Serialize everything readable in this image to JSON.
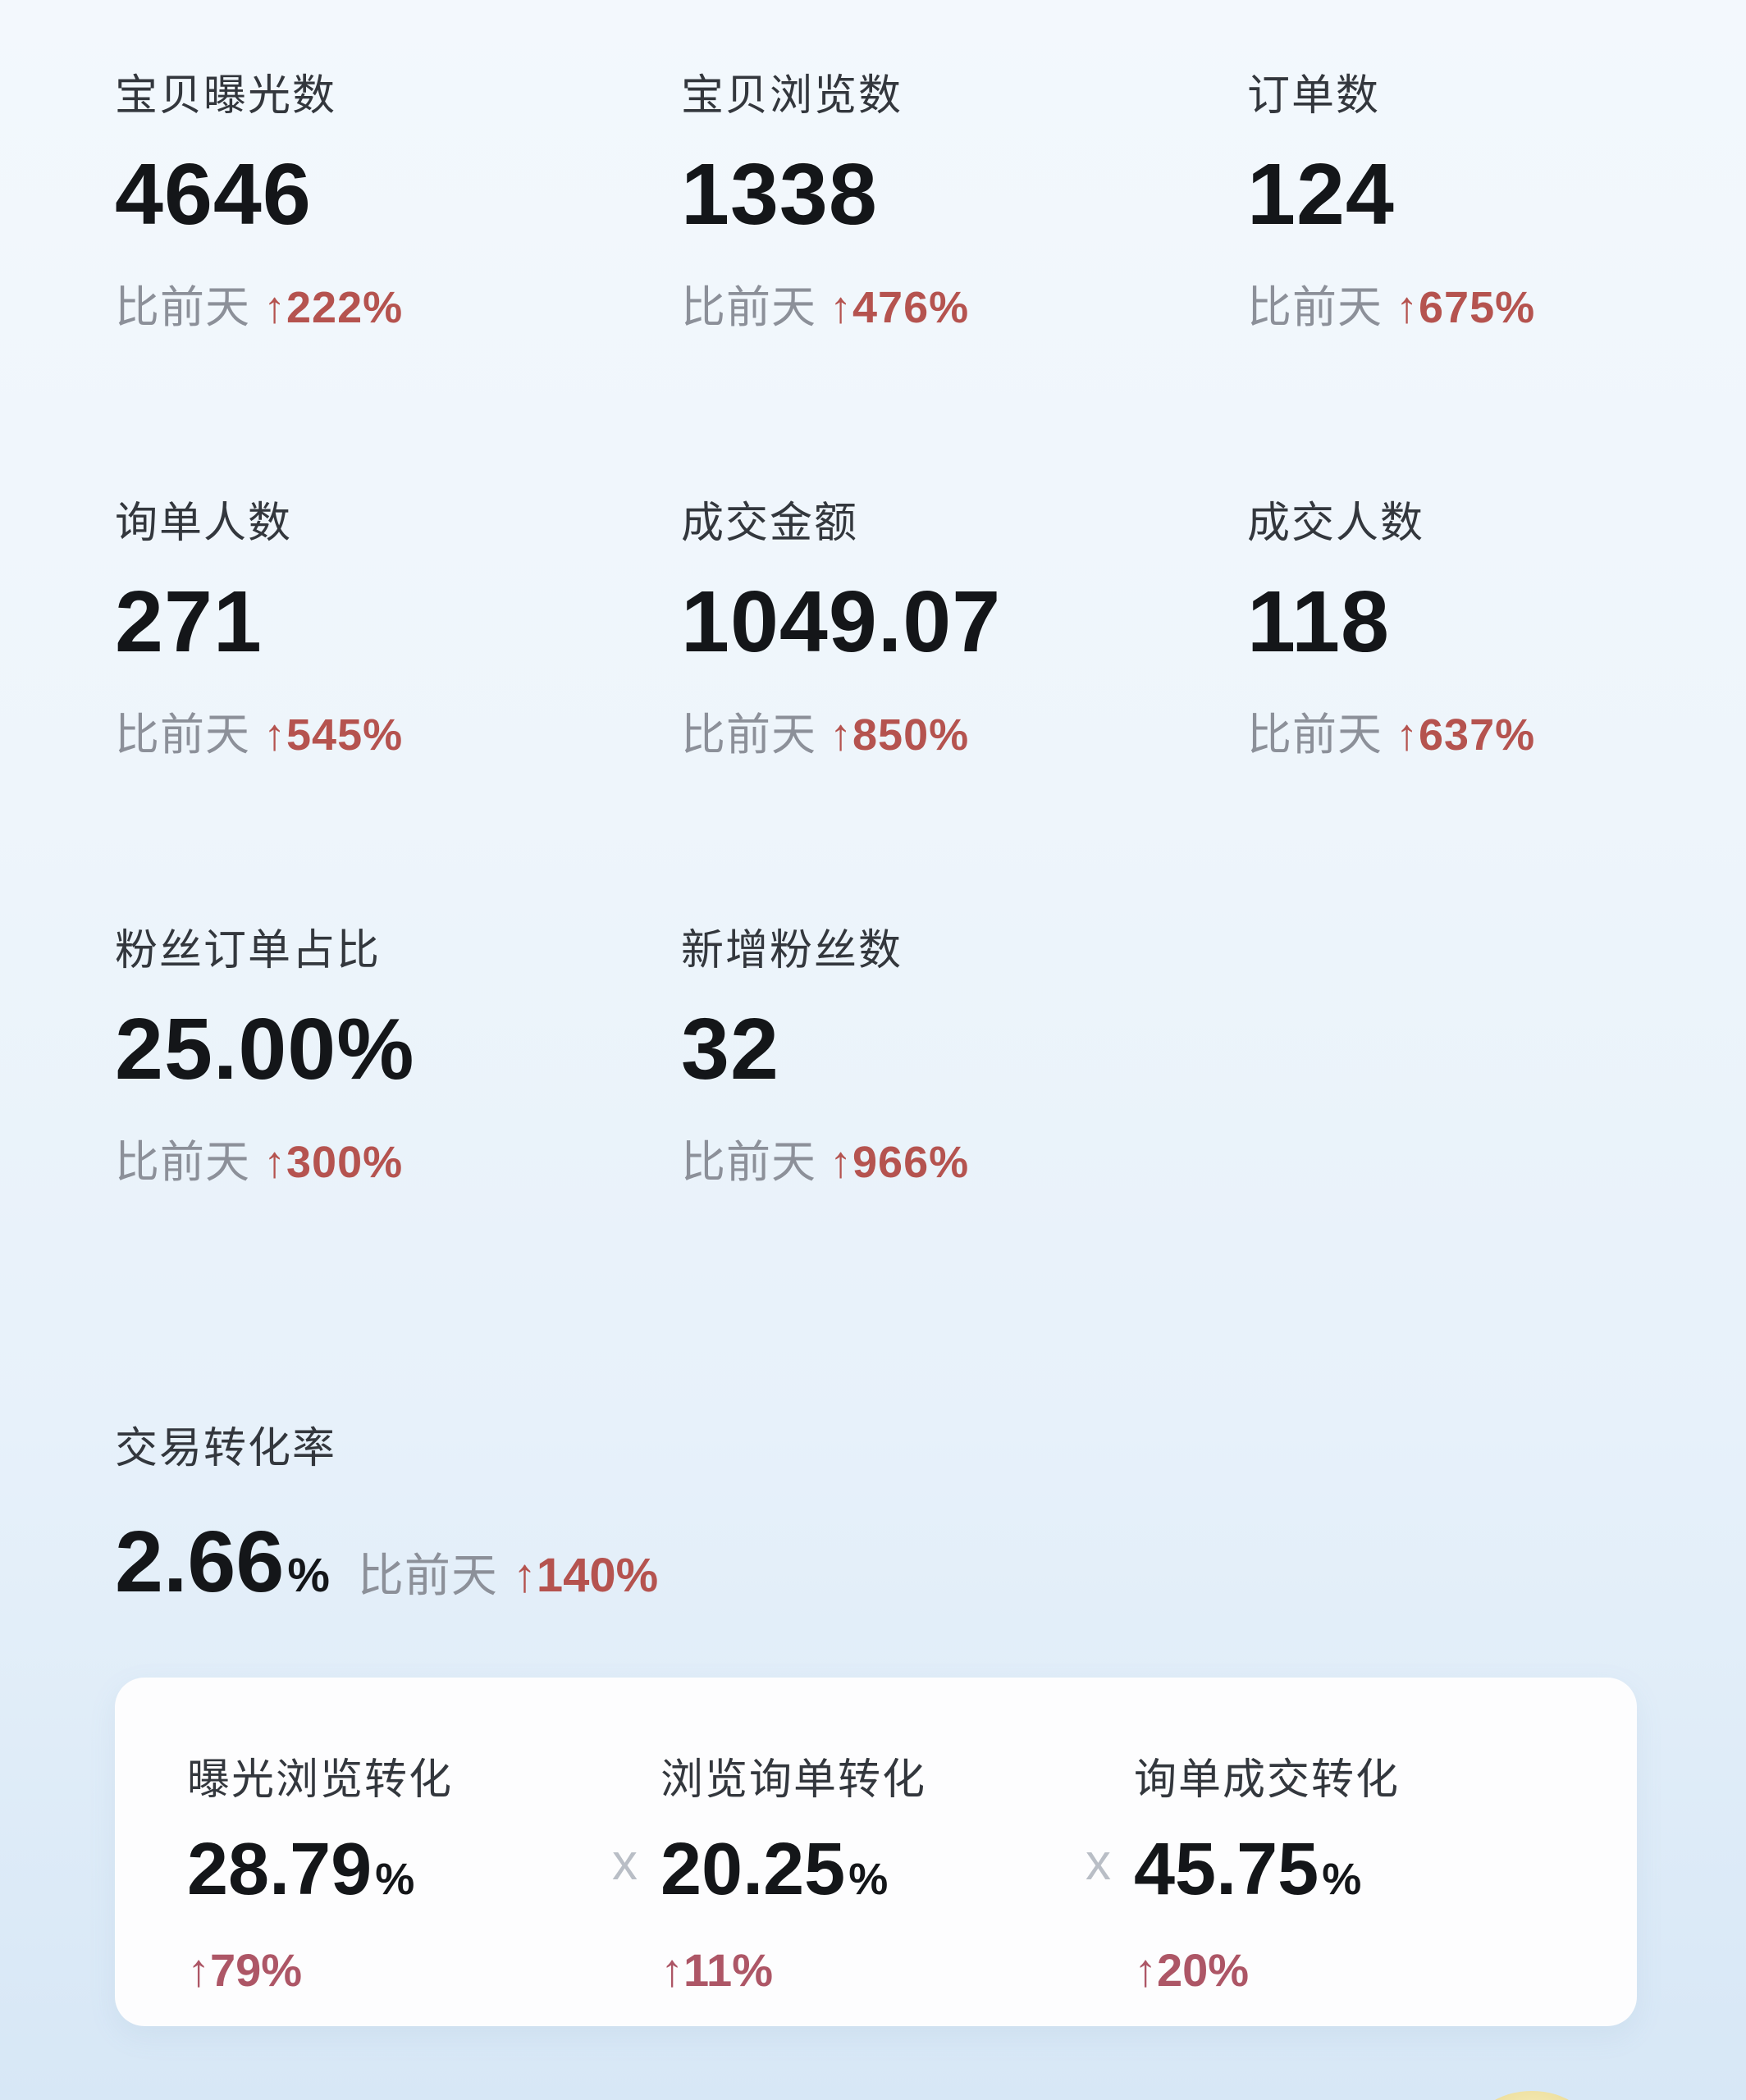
{
  "colors": {
    "background_top": "#f3f8fd",
    "background_bottom": "#d7e7f6",
    "card_background": "#fdfdfe",
    "label_text": "#33373d",
    "value_text": "#141619",
    "muted_text": "#8c9099",
    "up_red": "#b5534f",
    "card_delta_red": "#ad5666",
    "separator_gray": "#b9bec6",
    "sticker_yellow": "#efe1a2"
  },
  "compare": {
    "prefix": "比前天",
    "arrow": "↑"
  },
  "metrics": [
    {
      "label": "宝贝曝光数",
      "value": "4646",
      "delta": "222%"
    },
    {
      "label": "宝贝浏览数",
      "value": "1338",
      "delta": "476%"
    },
    {
      "label": "订单数",
      "value": "124",
      "delta": "675%"
    },
    {
      "label": "询单人数",
      "value": "271",
      "delta": "545%"
    },
    {
      "label": "成交金额",
      "value": "1049.07",
      "delta": "850%"
    },
    {
      "label": "成交人数",
      "value": "118",
      "delta": "637%"
    },
    {
      "label": "粉丝订单占比",
      "value": "25.00%",
      "delta": "300%"
    },
    {
      "label": "新增粉丝数",
      "value": "32",
      "delta": "966%"
    }
  ],
  "conversion": {
    "label": "交易转化率",
    "value": "2.66",
    "unit": "%",
    "delta": "140%"
  },
  "funnel": {
    "separator": "x",
    "items": [
      {
        "label": "曝光浏览转化",
        "value": "28.79",
        "unit": "%",
        "delta": "79%"
      },
      {
        "label": "浏览询单转化",
        "value": "20.25",
        "unit": "%",
        "delta": "11%"
      },
      {
        "label": "询单成交转化",
        "value": "45.75",
        "unit": "%",
        "delta": "20%"
      }
    ]
  }
}
